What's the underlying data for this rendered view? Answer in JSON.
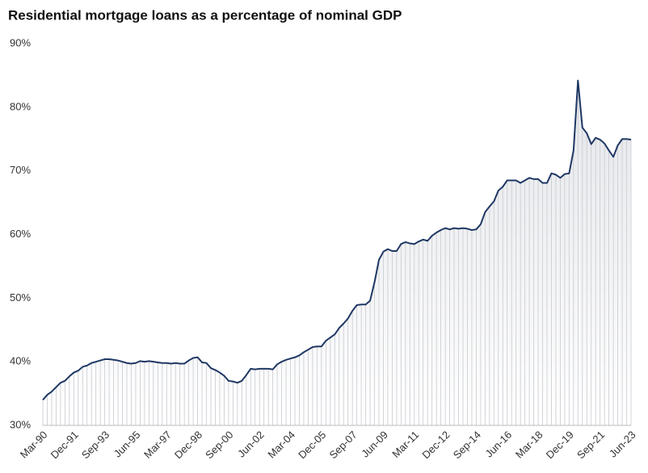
{
  "chart_data": {
    "type": "line",
    "title": "Residential mortgage loans as a percentage of nominal GDP",
    "categories": [
      "Mar-90",
      null,
      null,
      null,
      null,
      null,
      null,
      "Dec-91",
      null,
      null,
      null,
      null,
      null,
      null,
      "Sep-93",
      null,
      null,
      null,
      null,
      null,
      null,
      "Jun-95",
      null,
      null,
      null,
      null,
      null,
      null,
      "Mar-97",
      null,
      null,
      null,
      null,
      null,
      null,
      "Dec-98",
      null,
      null,
      null,
      null,
      null,
      null,
      "Sep-00",
      null,
      null,
      null,
      null,
      null,
      null,
      "Jun-02",
      null,
      null,
      null,
      null,
      null,
      null,
      "Mar-04",
      null,
      null,
      null,
      null,
      null,
      null,
      "Dec-05",
      null,
      null,
      null,
      null,
      null,
      null,
      "Sep-07",
      null,
      null,
      null,
      null,
      null,
      null,
      "Jun-09",
      null,
      null,
      null,
      null,
      null,
      null,
      "Mar-11",
      null,
      null,
      null,
      null,
      null,
      null,
      "Dec-12",
      null,
      null,
      null,
      null,
      null,
      null,
      "Sep-14",
      null,
      null,
      null,
      null,
      null,
      null,
      "Jun-16",
      null,
      null,
      null,
      null,
      null,
      null,
      "Mar-18",
      null,
      null,
      null,
      null,
      null,
      null,
      "Dec-19",
      null,
      null,
      null,
      null,
      null,
      null,
      "Sep-21",
      null,
      null,
      null,
      null,
      null,
      null,
      "Jun-23"
    ],
    "values": [
      34.0,
      34.8,
      35.3,
      36.0,
      36.7,
      37.0,
      37.7,
      38.3,
      38.6,
      39.2,
      39.4,
      39.8,
      40.0,
      40.2,
      40.4,
      40.4,
      40.3,
      40.2,
      40.0,
      39.8,
      39.7,
      39.8,
      40.1,
      40.0,
      40.1,
      40.0,
      39.9,
      39.8,
      39.8,
      39.7,
      39.8,
      39.7,
      39.7,
      40.2,
      40.6,
      40.7,
      39.9,
      39.8,
      39.0,
      38.7,
      38.3,
      37.8,
      37.0,
      36.9,
      36.7,
      37.0,
      37.9,
      38.9,
      38.8,
      38.9,
      38.9,
      38.9,
      38.8,
      39.6,
      40.0,
      40.3,
      40.5,
      40.7,
      41.0,
      41.5,
      41.9,
      42.3,
      42.4,
      42.4,
      43.3,
      43.8,
      44.3,
      45.3,
      46.0,
      46.8,
      48.0,
      48.9,
      49.0,
      49.0,
      49.6,
      52.5,
      56.0,
      57.3,
      57.7,
      57.4,
      57.4,
      58.5,
      58.8,
      58.6,
      58.5,
      58.9,
      59.2,
      59.0,
      59.8,
      60.3,
      60.7,
      61.0,
      60.8,
      61.0,
      60.9,
      61.0,
      60.9,
      60.7,
      60.8,
      61.6,
      63.5,
      64.4,
      65.2,
      66.9,
      67.5,
      68.5,
      68.5,
      68.5,
      68.1,
      68.5,
      68.9,
      68.7,
      68.7,
      68.1,
      68.1,
      69.6,
      69.4,
      68.9,
      69.5,
      69.6,
      73.2,
      84.2,
      76.8,
      75.9,
      74.2,
      75.2,
      74.9,
      74.3,
      73.2,
      72.2,
      74.0,
      75.0,
      75.0,
      74.9
    ],
    "color": "#1f3864",
    "ylim": [
      30,
      90
    ],
    "yticks": [
      {
        "value": 30,
        "label": "30%"
      },
      {
        "value": 40,
        "label": "40%"
      },
      {
        "value": 50,
        "label": "50%"
      },
      {
        "value": 60,
        "label": "60%"
      },
      {
        "value": 70,
        "label": "70%"
      },
      {
        "value": 80,
        "label": "80%"
      },
      {
        "value": 90,
        "label": "90%"
      }
    ],
    "grid": false
  }
}
